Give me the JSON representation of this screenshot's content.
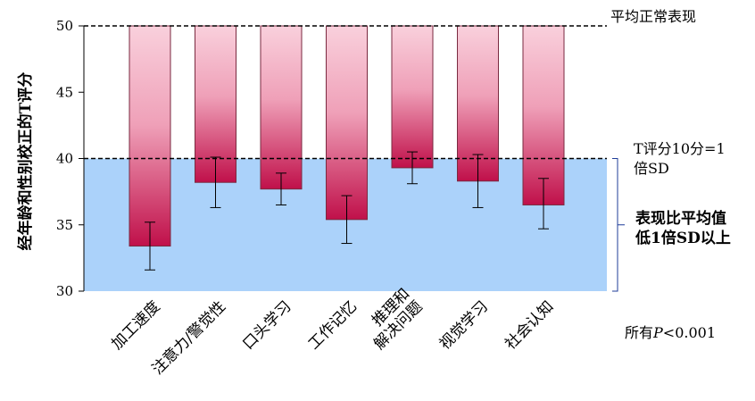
{
  "chart_data": {
    "type": "bar",
    "ylabel": "经年龄和性别校正的T评分",
    "ylim": [
      30,
      50
    ],
    "yticks": [
      30,
      35,
      40,
      45,
      50
    ],
    "baseline": 50,
    "categories": [
      [
        "加工速度"
      ],
      [
        "注意力/警觉性"
      ],
      [
        "口头学习"
      ],
      [
        "工作记忆"
      ],
      [
        "推理和",
        "解决问题"
      ],
      [
        "视觉学习"
      ],
      [
        "社会认知"
      ]
    ],
    "values": [
      33.4,
      38.2,
      37.7,
      35.4,
      39.3,
      38.3,
      36.5
    ],
    "error_low": [
      31.6,
      36.3,
      36.5,
      33.6,
      38.1,
      36.3,
      34.7
    ],
    "error_high": [
      35.2,
      40.1,
      38.9,
      37.2,
      40.5,
      40.3,
      38.5
    ],
    "reference_lines": [
      {
        "value": 50,
        "label": "平均正常表现"
      },
      {
        "value": 40,
        "label_lines": [
          "T评分10分=1",
          "倍SD"
        ]
      }
    ],
    "shaded_region": {
      "from": 30,
      "to": 40,
      "label_lines": [
        "表现比平均值",
        "低1倍SD以上"
      ],
      "color": "#abd2fa"
    },
    "footnote": {
      "prefix": "所有",
      "italic": "P",
      "suffix": "<0.001"
    },
    "colors": {
      "bar_top": "#f9d0dc",
      "bar_mid": "#efa0b8",
      "bar_bottom": "#c0104a",
      "dash": "#000000"
    }
  }
}
